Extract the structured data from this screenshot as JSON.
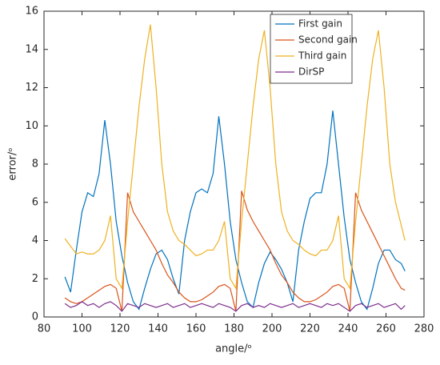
{
  "chart_data": {
    "type": "line",
    "x_label": "angle/ᵒ",
    "y_label": "error/ᵒ",
    "x": [
      91,
      94,
      97,
      100,
      103,
      106,
      109,
      112,
      115,
      118,
      121,
      124,
      127,
      130,
      133,
      136,
      139,
      142,
      145,
      148,
      151,
      154,
      157,
      160,
      163,
      166,
      169,
      172,
      175,
      178,
      181,
      184,
      187,
      190,
      193,
      196,
      199,
      202,
      205,
      208,
      211,
      214,
      217,
      220,
      223,
      226,
      229,
      232,
      235,
      238,
      241,
      244,
      247,
      250,
      253,
      256,
      259,
      262,
      265,
      268,
      270
    ],
    "series": [
      {
        "name": "First gain",
        "color": "#0072bd",
        "values": [
          2.1,
          1.3,
          3.5,
          5.5,
          6.5,
          6.3,
          7.5,
          10.3,
          8,
          5,
          3.2,
          1.8,
          0.8,
          0.4,
          1.5,
          2.5,
          3.3,
          3.5,
          3,
          2,
          1.2,
          4,
          5.5,
          6.5,
          6.7,
          6.5,
          7.5,
          10.5,
          8,
          5,
          3,
          1.8,
          0.8,
          0.5,
          1.8,
          2.8,
          3.4,
          3,
          2.5,
          1.8,
          0.8,
          3.5,
          5,
          6.2,
          6.5,
          6.5,
          8,
          10.8,
          8,
          5.2,
          3,
          1.8,
          0.8,
          0.4,
          1.5,
          2.8,
          3.5,
          3.5,
          3,
          2.8,
          2.4
        ]
      },
      {
        "name": "Second gain",
        "color": "#d95319",
        "values": [
          1,
          0.8,
          0.7,
          0.8,
          1,
          1.2,
          1.4,
          1.6,
          1.7,
          1.5,
          0.3,
          6.5,
          5.5,
          5,
          4.5,
          4,
          3.5,
          2.8,
          2.2,
          1.8,
          1.3,
          1,
          0.8,
          0.8,
          0.9,
          1.1,
          1.3,
          1.6,
          1.7,
          1.5,
          0.3,
          6.6,
          5.6,
          5,
          4.5,
          4,
          3.5,
          2.8,
          2.2,
          1.8,
          1.3,
          1,
          0.8,
          0.8,
          0.9,
          1.1,
          1.3,
          1.6,
          1.7,
          1.5,
          0.3,
          6.5,
          5.6,
          5,
          4.4,
          3.8,
          3.2,
          2.6,
          2,
          1.5,
          1.4
        ]
      },
      {
        "name": "Third gain",
        "color": "#edb120",
        "values": [
          4.1,
          3.7,
          3.3,
          3.4,
          3.3,
          3.3,
          3.5,
          4,
          5.3,
          2,
          1.5,
          5,
          8,
          11,
          13.5,
          15.3,
          12,
          8,
          5.5,
          4.5,
          4,
          3.8,
          3.5,
          3.2,
          3.3,
          3.5,
          3.5,
          4,
          5,
          2,
          1.5,
          5,
          8,
          11,
          13.5,
          15,
          12,
          8,
          5.5,
          4.5,
          4,
          3.8,
          3.5,
          3.3,
          3.2,
          3.5,
          3.5,
          4,
          5.3,
          2,
          1.5,
          5,
          8,
          11,
          13.5,
          15,
          12,
          8,
          6,
          4.8,
          4
        ]
      },
      {
        "name": "DirSP",
        "color": "#7e2f8e",
        "values": [
          0.7,
          0.5,
          0.6,
          0.8,
          0.6,
          0.7,
          0.5,
          0.7,
          0.8,
          0.6,
          0.3,
          0.7,
          0.6,
          0.5,
          0.7,
          0.6,
          0.5,
          0.6,
          0.7,
          0.5,
          0.6,
          0.7,
          0.5,
          0.6,
          0.7,
          0.6,
          0.5,
          0.7,
          0.6,
          0.5,
          0.3,
          0.6,
          0.7,
          0.5,
          0.6,
          0.5,
          0.7,
          0.6,
          0.5,
          0.6,
          0.7,
          0.5,
          0.6,
          0.7,
          0.6,
          0.5,
          0.7,
          0.6,
          0.7,
          0.5,
          0.3,
          0.6,
          0.7,
          0.5,
          0.6,
          0.7,
          0.5,
          0.6,
          0.7,
          0.4,
          0.6
        ]
      }
    ],
    "xlim": [
      80,
      280
    ],
    "xticks": [
      80,
      100,
      120,
      140,
      160,
      180,
      200,
      220,
      240,
      260,
      280
    ],
    "ylim": [
      0,
      16
    ],
    "yticks": [
      0,
      2,
      4,
      6,
      8,
      10,
      12,
      14,
      16
    ],
    "legend": "upper right",
    "grid": false
  }
}
